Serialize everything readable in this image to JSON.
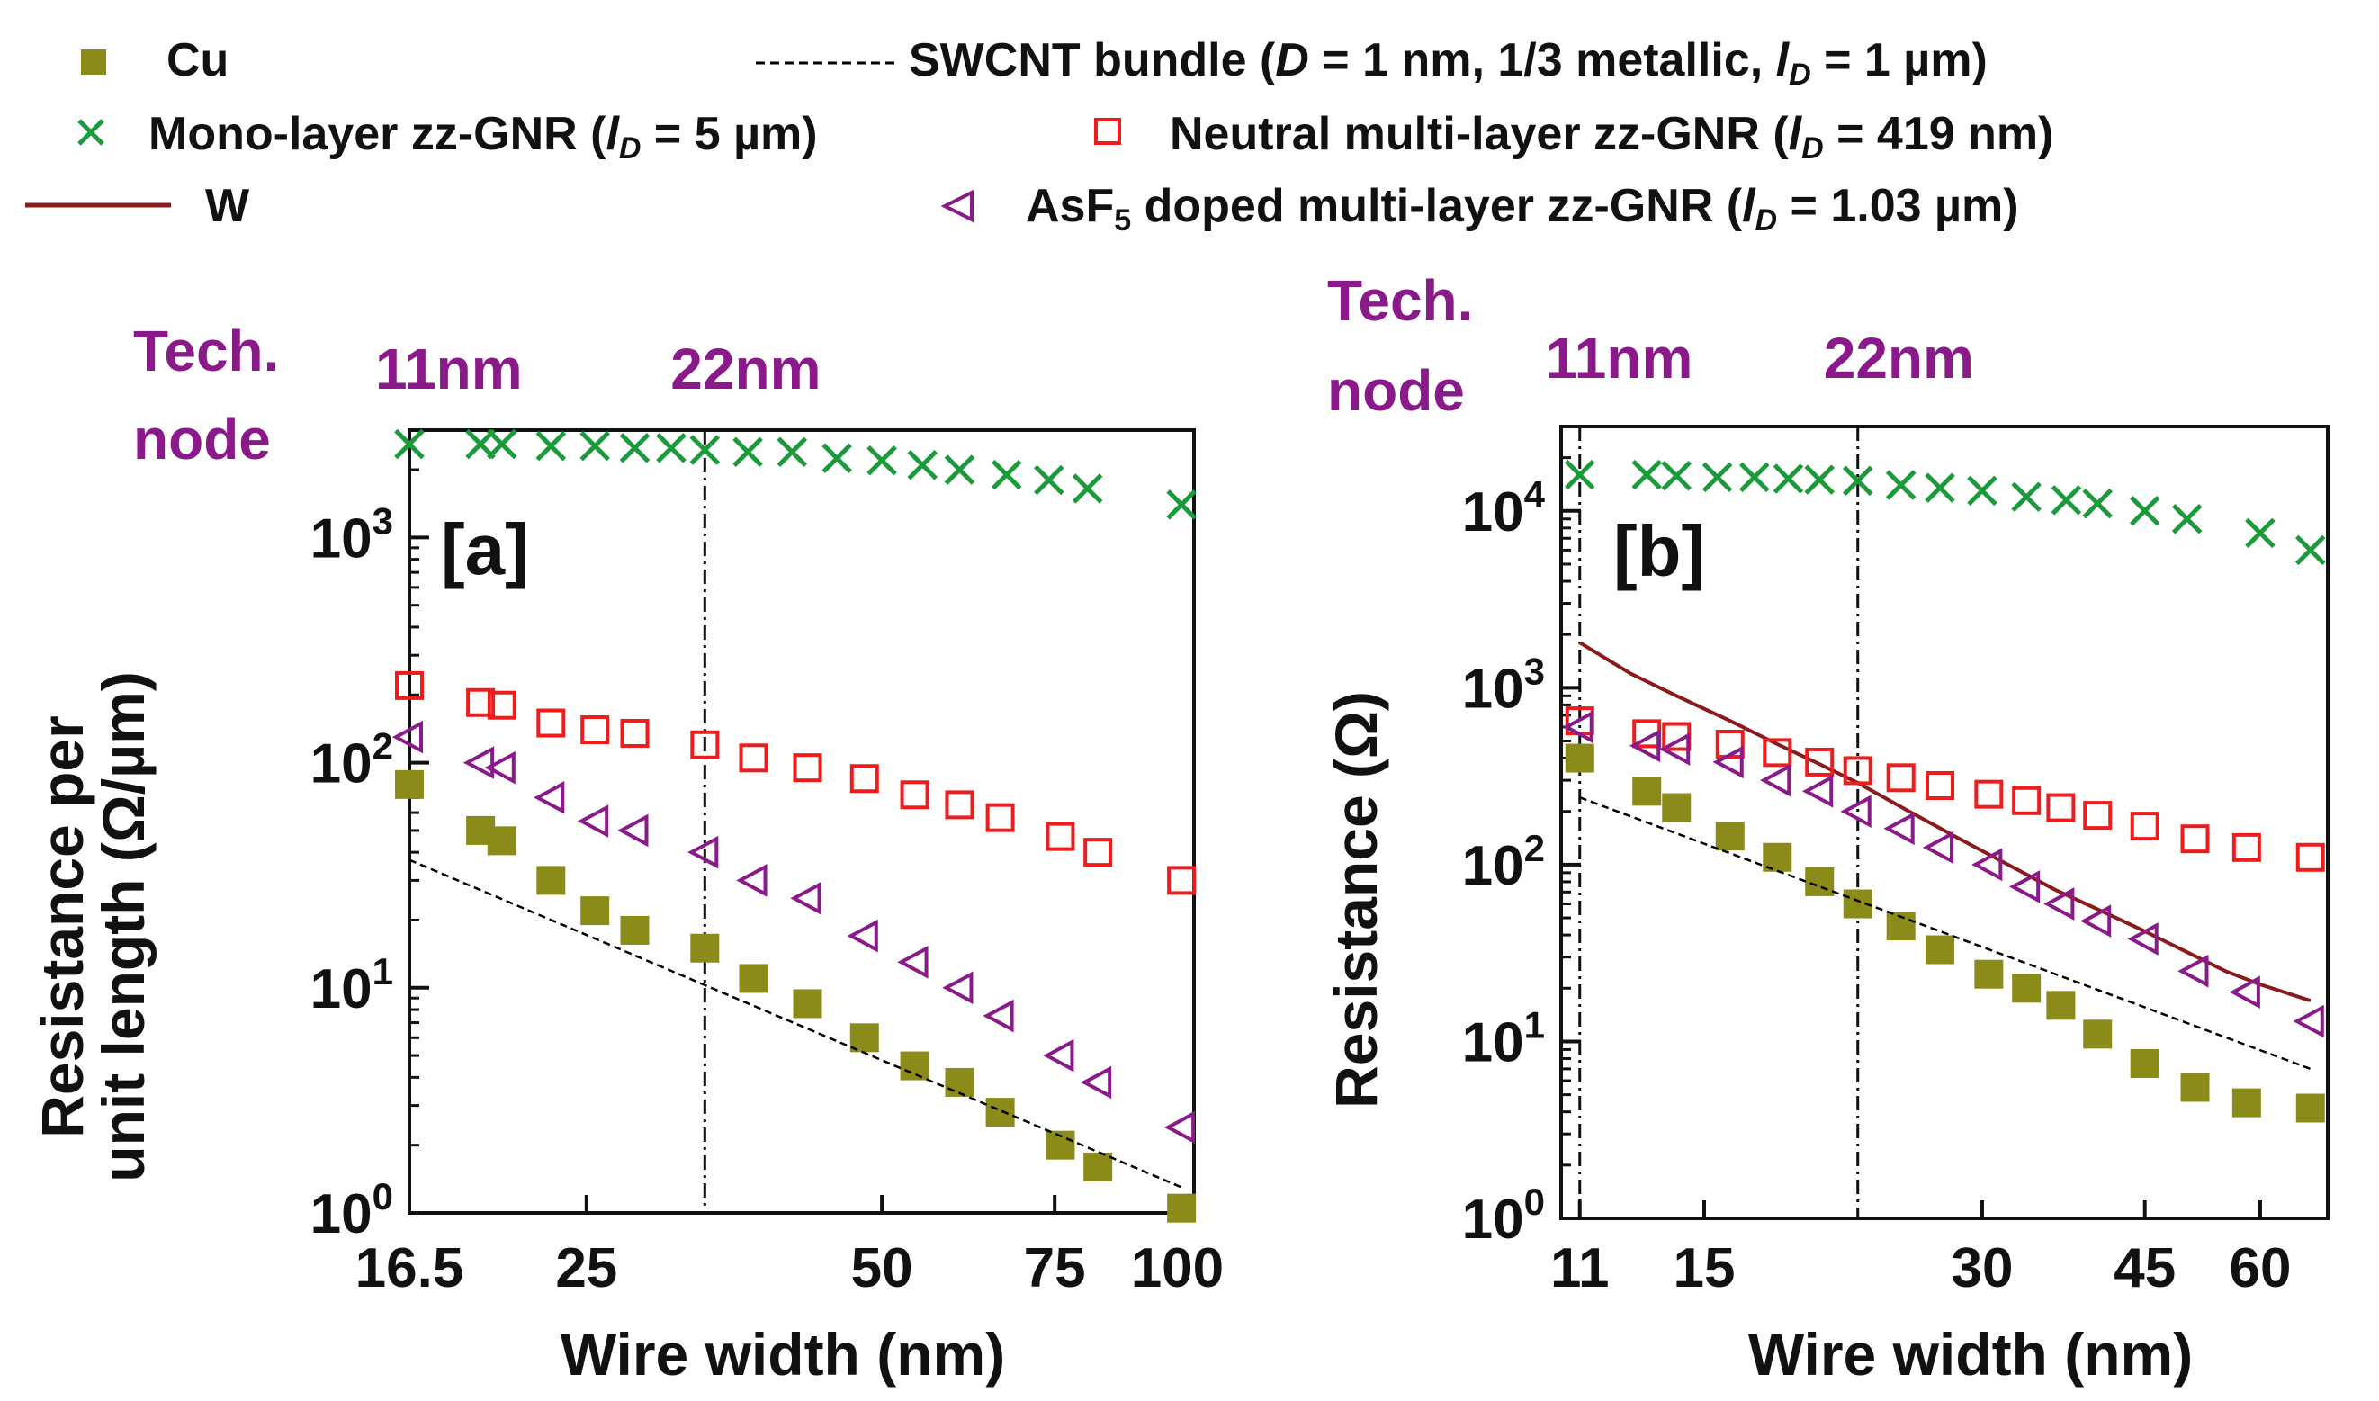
{
  "legend": {
    "cu": "Cu",
    "swcnt": {
      "pre": "SWCNT bundle (",
      "D": "D",
      "mid": " = 1 nm, 1/3 metallic, ",
      "l": "l",
      "sub": "D",
      "post": " = 1 µm)"
    },
    "mono": {
      "pre": "Mono-layer zz-GNR (",
      "l": "l",
      "sub": "D",
      "post": " = 5 µm)"
    },
    "neutral": {
      "pre": "Neutral multi-layer zz-GNR (",
      "l": "l",
      "sub": "D",
      "post": " = 419 nm)"
    },
    "w": "W",
    "asf5": {
      "pre": "AsF",
      "sub5": "5",
      "mid": " doped multi-layer zz-GNR (",
      "l": "l",
      "sub": "D",
      "post": " = 1.03 µm)"
    }
  },
  "colors": {
    "cu": "#8b8b1a",
    "mono": "#1a9a3a",
    "neutral": "#ee1c1c",
    "asf5": "#8a1a8a",
    "w": "#8b1a1a",
    "swcnt": "#000000",
    "node_label": "#8a1a8a"
  },
  "chart_data": [
    {
      "type": "scatter",
      "panel_label": "[a]",
      "title": "",
      "xlabel": "Wire width (nm)",
      "ylabel_line1": "Resistance per",
      "ylabel_line2": "unit length (Ω/µm)",
      "xscale": "log",
      "yscale": "log",
      "xlim": [
        16.5,
        104
      ],
      "ylim": [
        1,
        3000
      ],
      "xticks": [
        16.5,
        25,
        50,
        75,
        100
      ],
      "xtick_labels": [
        "16.5",
        "25",
        "50",
        "75",
        "100"
      ],
      "yticks": [
        1,
        10,
        100,
        1000
      ],
      "ytick_base": "10",
      "ytick_exps": [
        "0",
        "1",
        "2",
        "3"
      ],
      "tech_node": {
        "line1": "Tech.",
        "line2": "node",
        "nodes": [
          {
            "label": "11nm",
            "x": 16.5
          },
          {
            "label": "22nm",
            "x": 33
          }
        ]
      },
      "series": [
        {
          "name": "Mono-layer zz-GNR",
          "marker": "x",
          "color": "mono",
          "x": [
            16.5,
            19.5,
            20.5,
            23,
            25.5,
            28,
            30.5,
            33,
            36.5,
            40.5,
            45,
            50,
            55,
            60,
            67,
            74,
            81,
            101
          ],
          "y": [
            2600,
            2600,
            2600,
            2550,
            2550,
            2500,
            2500,
            2450,
            2400,
            2400,
            2250,
            2200,
            2100,
            2000,
            1900,
            1800,
            1650,
            1400
          ]
        },
        {
          "name": "Neutral multi-layer zz-GNR",
          "marker": "square-open",
          "color": "neutral",
          "x": [
            16.5,
            19.5,
            20.5,
            23,
            25.5,
            28,
            33,
            37,
            42,
            48,
            54,
            60,
            66,
            76,
            83,
            101
          ],
          "y": [
            220,
            185,
            180,
            150,
            140,
            135,
            120,
            105,
            95,
            85,
            72,
            65,
            57,
            47,
            40,
            30
          ]
        },
        {
          "name": "AsF5 doped multi-layer zz-GNR",
          "marker": "triangle-left-open",
          "color": "asf5",
          "x": [
            16.5,
            19.5,
            20.5,
            23,
            25.5,
            28,
            33,
            37,
            42,
            48,
            54,
            60,
            66,
            76,
            83,
            101
          ],
          "y": [
            130,
            100,
            95,
            70,
            55,
            50,
            40,
            30,
            25,
            17,
            13,
            10,
            7.5,
            5,
            3.8,
            2.4
          ]
        },
        {
          "name": "Cu",
          "marker": "square-filled",
          "color": "cu",
          "x": [
            16.5,
            19.5,
            20.5,
            23,
            25.5,
            28,
            33,
            37,
            42,
            48,
            54,
            60,
            66,
            76,
            83,
            101
          ],
          "y": [
            80,
            50,
            45,
            30,
            22,
            18,
            15,
            11,
            8.5,
            6,
            4.5,
            3.8,
            2.8,
            2,
            1.6,
            1.05
          ]
        },
        {
          "name": "SWCNT bundle",
          "marker": "line-dashed",
          "color": "swcnt",
          "x": [
            16.5,
            101
          ],
          "y": [
            37,
            1.3
          ]
        }
      ]
    },
    {
      "type": "scatter",
      "panel_label": "[b]",
      "title": "",
      "xlabel": "Wire width (nm)",
      "ylabel": "Resistance (Ω)",
      "xscale": "log",
      "yscale": "log",
      "xlim": [
        10.5,
        71
      ],
      "ylim": [
        1,
        30000
      ],
      "xticks": [
        11,
        15,
        30,
        45,
        60
      ],
      "xtick_labels": [
        "11",
        "15",
        "30",
        "45",
        "60"
      ],
      "yticks": [
        1,
        10,
        100,
        1000,
        10000
      ],
      "ytick_base": "10",
      "ytick_exps": [
        "0",
        "1",
        "2",
        "3",
        "4"
      ],
      "tech_node": {
        "line1": "Tech.",
        "line2": "node",
        "nodes": [
          {
            "label": "11nm",
            "x": 11
          },
          {
            "label": "22nm",
            "x": 22
          }
        ]
      },
      "series": [
        {
          "name": "Mono-layer zz-GNR",
          "marker": "x",
          "color": "mono",
          "x": [
            11,
            13,
            14,
            15.5,
            17,
            18.5,
            20,
            22,
            24.5,
            27,
            30,
            33.5,
            37,
            40,
            45,
            50,
            60,
            68
          ],
          "y": [
            16000,
            16000,
            15800,
            15500,
            15500,
            15200,
            15000,
            14800,
            14000,
            13500,
            13000,
            12000,
            11500,
            11000,
            10000,
            9000,
            7500,
            6000
          ]
        },
        {
          "name": "W",
          "marker": "line-solid",
          "color": "w",
          "x": [
            11,
            12.5,
            14,
            16,
            18,
            20,
            22,
            25,
            28,
            32,
            36,
            40,
            45,
            50,
            55,
            60,
            68
          ],
          "y": [
            1800,
            1200,
            900,
            650,
            480,
            370,
            290,
            200,
            145,
            100,
            72,
            56,
            42,
            32,
            25,
            21,
            17
          ]
        },
        {
          "name": "Neutral multi-layer zz-GNR",
          "marker": "square-open",
          "color": "neutral",
          "x": [
            11,
            13,
            14,
            16,
            18,
            20,
            22,
            24.5,
            27,
            30.5,
            33.5,
            36.5,
            40,
            45,
            51,
            58,
            68
          ],
          "y": [
            650,
            550,
            530,
            480,
            430,
            380,
            340,
            310,
            280,
            250,
            230,
            210,
            190,
            165,
            140,
            125,
            110
          ]
        },
        {
          "name": "AsF5 doped multi-layer zz-GNR",
          "marker": "triangle-left-open",
          "color": "asf5",
          "x": [
            11,
            13,
            14,
            16,
            18,
            20,
            22,
            24.5,
            27,
            30.5,
            33.5,
            36.5,
            40,
            45,
            51,
            58,
            68
          ],
          "y": [
            600,
            470,
            450,
            380,
            300,
            260,
            200,
            160,
            125,
            100,
            75,
            60,
            48,
            38,
            25,
            19,
            13
          ]
        },
        {
          "name": "Cu",
          "marker": "square-filled",
          "color": "cu",
          "x": [
            11,
            13,
            14,
            16,
            18,
            20,
            22,
            24.5,
            27,
            30.5,
            33.5,
            36.5,
            40,
            45,
            51,
            58,
            68
          ],
          "y": [
            400,
            260,
            210,
            145,
            110,
            80,
            60,
            45,
            33,
            24,
            20,
            16,
            11,
            7.5,
            5.5,
            4.5,
            4.2
          ]
        },
        {
          "name": "SWCNT bundle",
          "marker": "line-dashed",
          "color": "swcnt",
          "x": [
            11,
            68
          ],
          "y": [
            240,
            7
          ]
        }
      ]
    }
  ]
}
